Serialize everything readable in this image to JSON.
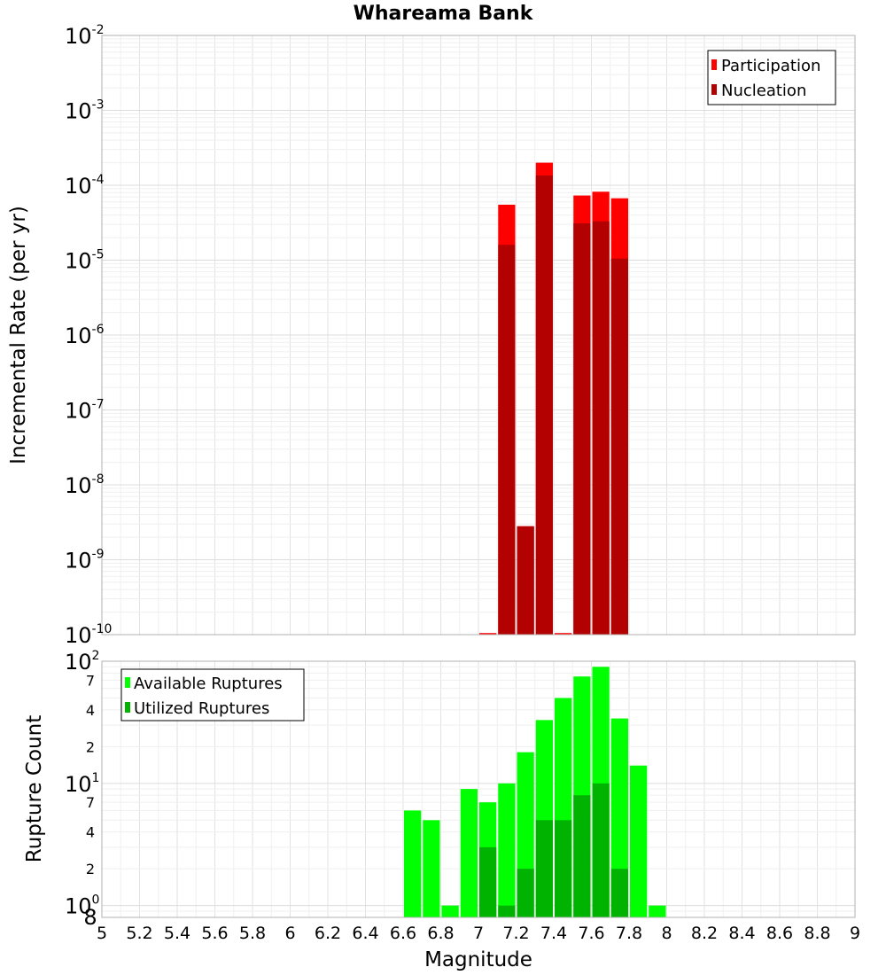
{
  "chart_data": [
    {
      "type": "bar",
      "title": "Whareama Bank",
      "xlabel": "Magnitude",
      "ylabel": "Incremental Rate (per yr)",
      "yscale": "log",
      "xlim": [
        5,
        9
      ],
      "ylim": [
        1e-10,
        0.01
      ],
      "grid": true,
      "legend_position": "top-right",
      "x": [
        7.05,
        7.15,
        7.25,
        7.35,
        7.45,
        7.55,
        7.65,
        7.75
      ],
      "series": [
        {
          "name": "Participation",
          "color": "#ff0000",
          "values": [
            1.05e-10,
            5.5e-05,
            2.8e-09,
            0.0002,
            1.05e-10,
            7.3e-05,
            8.2e-05,
            6.7e-05
          ]
        },
        {
          "name": "Nucleation",
          "color": "#b30000",
          "values": [
            null,
            1.6e-05,
            2.8e-09,
            0.000135,
            null,
            3.1e-05,
            3.3e-05,
            1.05e-05
          ]
        }
      ]
    },
    {
      "type": "bar",
      "xlabel": "Magnitude",
      "ylabel": "Rupture Count",
      "yscale": "log",
      "xlim": [
        5,
        9
      ],
      "ylim": [
        0.8,
        100
      ],
      "grid": true,
      "legend_position": "top-left",
      "x": [
        6.65,
        6.75,
        6.85,
        6.95,
        7.05,
        7.15,
        7.25,
        7.35,
        7.45,
        7.55,
        7.65,
        7.75,
        7.85,
        7.95
      ],
      "series": [
        {
          "name": "Available Ruptures",
          "color": "#00ff00",
          "values": [
            6,
            5,
            1,
            9,
            7,
            10,
            18,
            33,
            50,
            75,
            90,
            34,
            14,
            1
          ]
        },
        {
          "name": "Utilized Ruptures",
          "color": "#00b300",
          "values": [
            null,
            null,
            null,
            null,
            3,
            1,
            2,
            5,
            5,
            8,
            10,
            2,
            null,
            null
          ]
        }
      ]
    }
  ],
  "x_ticks": [
    "5",
    "5.2",
    "5.4",
    "5.6",
    "5.8",
    "6",
    "6.2",
    "6.4",
    "6.6",
    "6.8",
    "7",
    "7.2",
    "7.4",
    "7.6",
    "7.8",
    "8",
    "8.2",
    "8.4",
    "8.6",
    "8.8",
    "9"
  ],
  "top_y_ticks": [
    {
      "base": "10",
      "exp": "-2"
    },
    {
      "base": "10",
      "exp": "-3"
    },
    {
      "base": "10",
      "exp": "-4"
    },
    {
      "base": "10",
      "exp": "-5"
    },
    {
      "base": "10",
      "exp": "-6"
    },
    {
      "base": "10",
      "exp": "-7"
    },
    {
      "base": "10",
      "exp": "-8"
    },
    {
      "base": "10",
      "exp": "-9"
    },
    {
      "base": "10",
      "exp": "-10"
    }
  ],
  "bottom_y_ticks": [
    {
      "base": "10",
      "exp": "2"
    },
    {
      "base": "10",
      "exp": "1"
    },
    {
      "base": "10",
      "exp": "0"
    }
  ],
  "bottom_minor_labels": [
    "7",
    "4",
    "2",
    "7",
    "4",
    "2",
    "8"
  ]
}
